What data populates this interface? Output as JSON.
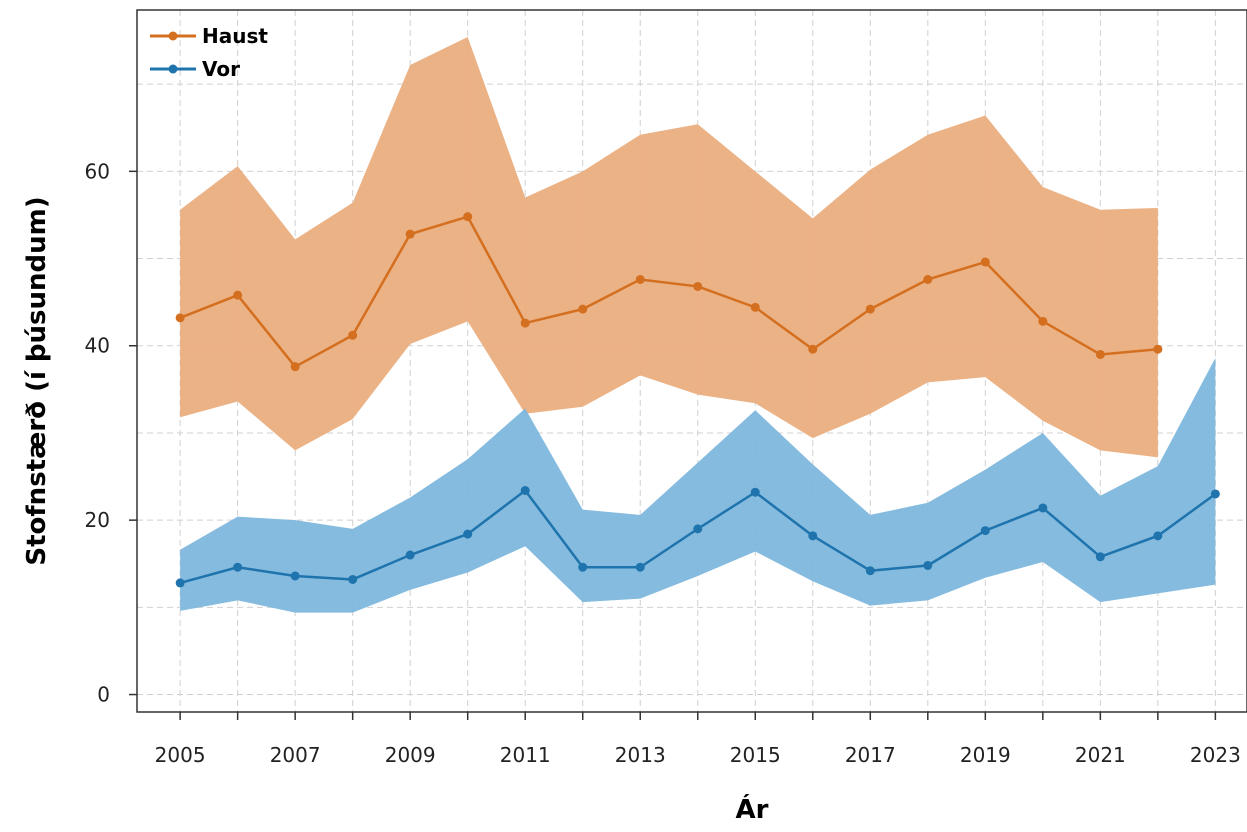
{
  "chart_data": {
    "type": "line",
    "title": "",
    "xlabel": "Ár",
    "ylabel": "Stofnstærð (í þúsundum)",
    "x_ticks": [
      2005,
      2007,
      2009,
      2011,
      2013,
      2015,
      2017,
      2019,
      2021,
      2023
    ],
    "y_ticks": [
      0,
      20,
      40,
      60
    ],
    "xlim": [
      2004.25,
      2023.55
    ],
    "ylim": [
      -2,
      78.5
    ],
    "grid": true,
    "legend_position": "top-left",
    "series": [
      {
        "name": "Haust",
        "color": "#d46f1f",
        "band_color": "#eaae80",
        "x": [
          2005,
          2006,
          2007,
          2008,
          2009,
          2010,
          2011,
          2012,
          2013,
          2014,
          2015,
          2016,
          2017,
          2018,
          2019,
          2020,
          2021,
          2022
        ],
        "values": [
          43.2,
          45.8,
          37.6,
          41.2,
          52.8,
          54.8,
          42.6,
          44.2,
          47.6,
          46.8,
          44.4,
          39.6,
          44.2,
          47.6,
          49.6,
          42.8,
          39.0,
          39.6
        ],
        "lower": [
          31.8,
          33.6,
          28.0,
          31.6,
          40.2,
          42.8,
          32.2,
          33.0,
          36.6,
          34.4,
          33.4,
          29.4,
          32.2,
          35.8,
          36.4,
          31.4,
          28.0,
          27.2
        ],
        "upper": [
          55.6,
          60.6,
          52.2,
          56.4,
          72.2,
          75.4,
          57.0,
          60.0,
          64.2,
          65.4,
          60.0,
          54.6,
          60.2,
          64.2,
          66.4,
          58.2,
          55.6,
          55.8
        ]
      },
      {
        "name": "Vor",
        "color": "#1f74ad",
        "band_color": "#7db7dd",
        "x": [
          2005,
          2006,
          2007,
          2008,
          2009,
          2010,
          2011,
          2012,
          2013,
          2014,
          2015,
          2016,
          2017,
          2018,
          2019,
          2020,
          2021,
          2022,
          2023
        ],
        "values": [
          12.8,
          14.6,
          13.6,
          13.2,
          16.0,
          18.4,
          23.4,
          14.6,
          14.6,
          19.0,
          23.2,
          18.2,
          14.2,
          14.8,
          18.8,
          21.4,
          15.8,
          18.2,
          23.0
        ],
        "lower": [
          9.6,
          10.8,
          9.4,
          9.4,
          12.0,
          14.0,
          17.0,
          10.6,
          11.0,
          13.6,
          16.4,
          13.0,
          10.2,
          10.8,
          13.4,
          15.2,
          10.6,
          11.6,
          12.6
        ],
        "upper": [
          16.6,
          20.4,
          20.0,
          19.0,
          22.6,
          27.0,
          32.8,
          21.2,
          20.6,
          26.6,
          32.6,
          26.4,
          20.6,
          22.0,
          25.8,
          30.0,
          22.8,
          26.2,
          38.6
        ]
      }
    ]
  }
}
